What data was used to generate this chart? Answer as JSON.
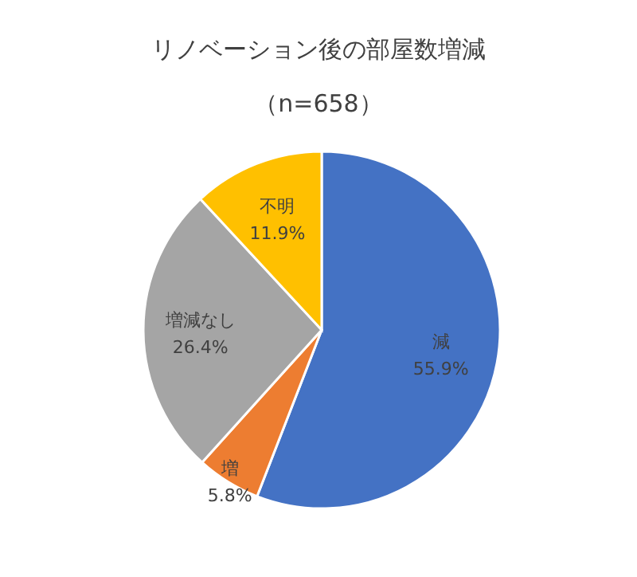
{
  "chart_data": {
    "type": "pie",
    "title": "リノベーション後の部屋数増減",
    "subtitle": "（n=658）",
    "categories": [
      "減",
      "増",
      "増減なし",
      "不明"
    ],
    "values": [
      55.9,
      5.8,
      26.4,
      11.9
    ],
    "colors": [
      "#4472c4",
      "#ed7d31",
      "#a5a5a5",
      "#ffc000"
    ],
    "value_labels": [
      "55.9%",
      "5.8%",
      "26.4%",
      "11.9%"
    ]
  }
}
